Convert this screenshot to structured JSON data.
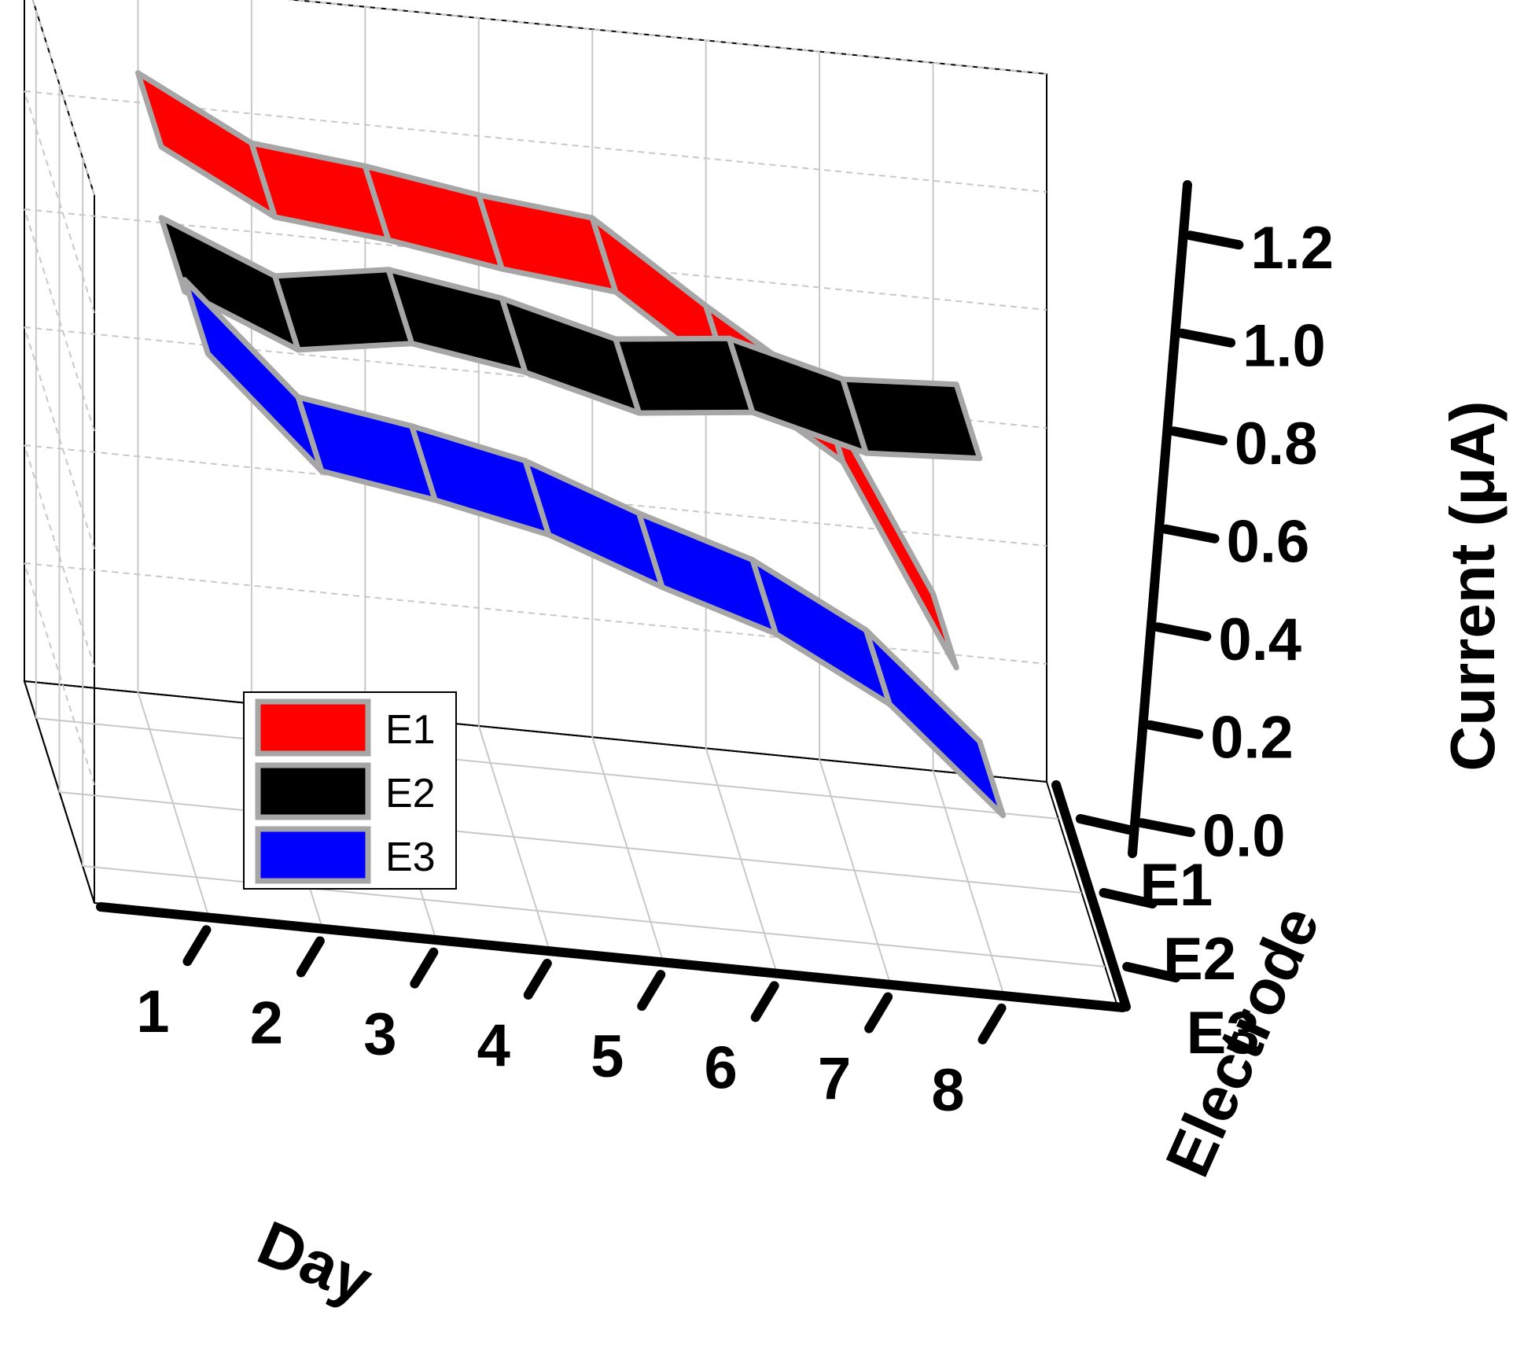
{
  "chart_data": {
    "type": "3d-ribbon",
    "title": "",
    "xlabel": "Day",
    "ylabel": "Electrode",
    "zlabel": "Current (μA)",
    "x_ticks": [
      "1",
      "2",
      "3",
      "4",
      "5",
      "6",
      "7",
      "8"
    ],
    "y_ticks": [
      "E1",
      "E2",
      "E3"
    ],
    "z_ticks": [
      "0.0",
      "0.2",
      "0.4",
      "0.6",
      "0.8",
      "1.0",
      "1.2"
    ],
    "zlim": [
      0,
      1.2
    ],
    "grid": true,
    "legend_position": "lower-left",
    "categories": [
      "1",
      "2",
      "3",
      "4",
      "5",
      "6",
      "7",
      "8"
    ],
    "series": [
      {
        "name": "E1",
        "color": "#ff0000",
        "values": [
          1.05,
          0.95,
          0.93,
          0.9,
          0.88,
          0.75,
          0.63,
          0.3
        ]
      },
      {
        "name": "E2",
        "color": "#000000",
        "values": [
          0.93,
          0.85,
          0.88,
          0.85,
          0.8,
          0.82,
          0.77,
          0.78
        ]
      },
      {
        "name": "E3",
        "color": "#0000ff",
        "values": [
          0.95,
          0.77,
          0.74,
          0.7,
          0.63,
          0.57,
          0.47,
          0.3
        ]
      }
    ]
  }
}
